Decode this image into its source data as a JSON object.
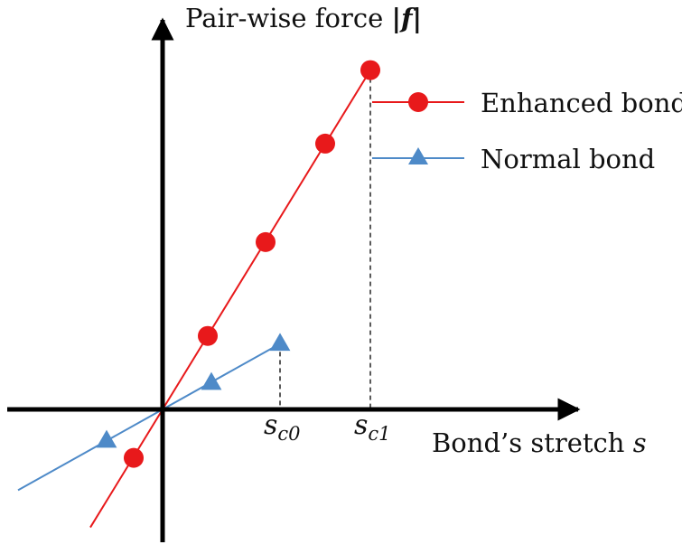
{
  "colors": {
    "axis": "#000000",
    "enhanced": "#e8191b",
    "normal": "#4e8ac8",
    "guide": "#000000"
  },
  "chart_data": {
    "type": "line",
    "title": "",
    "ylabel": "Pair-wise force |f|",
    "ylabel_parts": {
      "main": "Pair-wise force ",
      "bar_left": "|",
      "symbol": "f",
      "bar_right": "|"
    },
    "xlabel": "Bond’s stretch s",
    "xlabel_parts": {
      "main": "Bond’s stretch ",
      "symbol": "s"
    },
    "xlim": [
      -1.0,
      2.9
    ],
    "ylim": [
      -0.87,
      2.2
    ],
    "ticks": [
      {
        "base": "s",
        "sub": "c0",
        "value": 0.65
      },
      {
        "base": "s",
        "sub": "c1",
        "value": 1.15
      }
    ],
    "series": [
      {
        "name": "Enhanced bond",
        "legend": "Enhanced bond",
        "marker": "circle",
        "color": "#e8191b",
        "line_x": [
          -0.4,
          1.15
        ],
        "points": [
          {
            "x": -0.16,
            "y": -0.31
          },
          {
            "x": 0.25,
            "y": 0.47
          },
          {
            "x": 0.57,
            "y": 1.07
          },
          {
            "x": 0.9,
            "y": 1.7
          },
          {
            "x": 1.15,
            "y": 2.17
          }
        ]
      },
      {
        "name": "Normal bond",
        "legend": "Normal bond",
        "marker": "triangle",
        "color": "#4e8ac8",
        "line_x": [
          -0.8,
          0.65
        ],
        "points": [
          {
            "x": -0.31,
            "y": -0.2
          },
          {
            "x": 0.27,
            "y": 0.17
          },
          {
            "x": 0.65,
            "y": 0.42
          }
        ]
      }
    ],
    "guides": [
      {
        "x": 0.65,
        "y": 0.42
      },
      {
        "x": 1.15,
        "y": 2.17
      }
    ]
  }
}
